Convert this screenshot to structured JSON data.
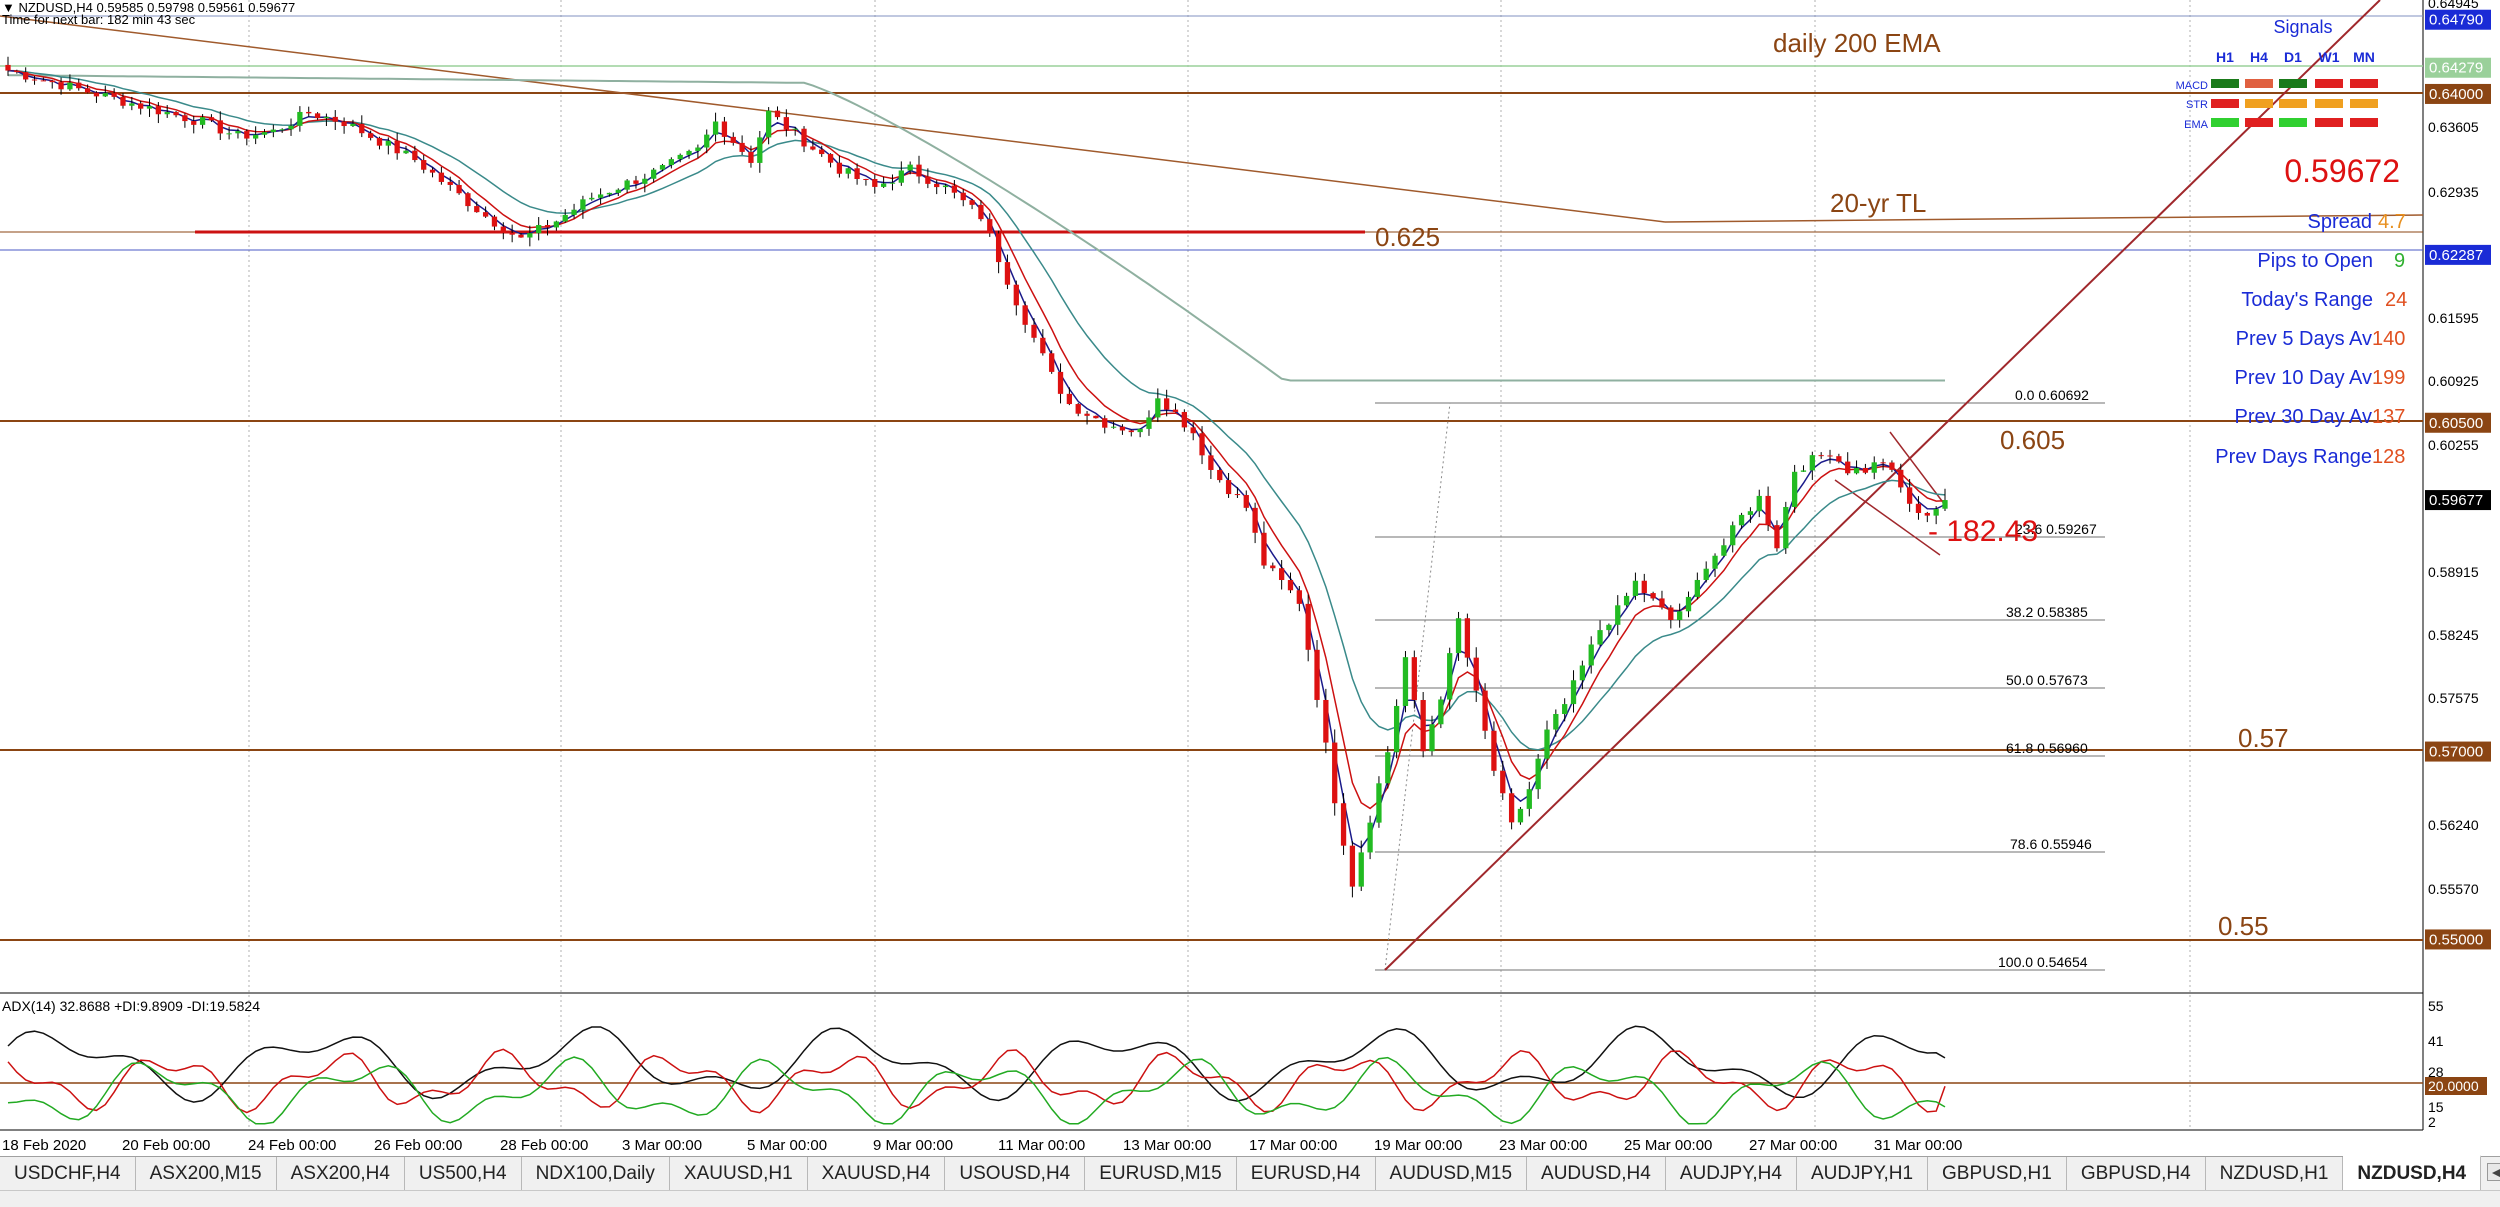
{
  "header": {
    "line1": "▼ NZDUSD,H4  0.59585 0.59798 0.59561 0.59677",
    "line2": "Time for next bar: 182 min 43 sec"
  },
  "annotations": {
    "daily_ema": "daily 200 EMA",
    "tl_20yr": "20-yr TL",
    "level_0625": "0.625",
    "level_0605": "0.605",
    "level_057": "0.57",
    "level_055": "0.55",
    "pips_label": "- 182.43"
  },
  "info_panel": {
    "signals_title": "Signals",
    "timeframes": [
      "H1",
      "H4",
      "D1",
      "W1",
      "MN"
    ],
    "rows": [
      {
        "name": "MACD",
        "colors": [
          "#1a7a1a",
          "#e06040",
          "#1a7a1a",
          "#e02020",
          "#e02020"
        ]
      },
      {
        "name": "STR",
        "colors": [
          "#e02020",
          "#f0a020",
          "#f0a020",
          "#f0a020",
          "#f0a020"
        ]
      },
      {
        "name": "EMA",
        "colors": [
          "#30d030",
          "#e02020",
          "#30d030",
          "#e02020",
          "#e02020"
        ]
      }
    ],
    "price": "0.59672",
    "spread_label": "Spread",
    "spread_value": "4.7",
    "pips_open_label": "Pips to Open",
    "pips_open_value": "9",
    "today_range_label": "Today's Range",
    "today_range_value": "24",
    "prev5_label": "Prev 5 Days Av",
    "prev5_value": "140",
    "prev10_label": "Prev 10 Day Av",
    "prev10_value": "199",
    "prev30_label": "Prev 30 Day Av",
    "prev30_value": "137",
    "prevdays_label": "Prev Days Range",
    "prevdays_value": "128"
  },
  "fib_levels": [
    {
      "pct": "0.0",
      "price": "0.60692"
    },
    {
      "pct": "23.6",
      "price": "0.59267"
    },
    {
      "pct": "38.2",
      "price": "0.58385"
    },
    {
      "pct": "50.0",
      "price": "0.57673"
    },
    {
      "pct": "61.8",
      "price": "0.56960"
    },
    {
      "pct": "78.6",
      "price": "0.55946"
    },
    {
      "pct": "100.0",
      "price": "0.54654"
    }
  ],
  "price_axis": {
    "ticks": [
      "0.64945",
      "0.63605",
      "0.62935",
      "0.61595",
      "0.60925",
      "0.60255",
      "0.58915",
      "0.58245",
      "0.57575",
      "0.56240",
      "0.55570"
    ],
    "boxes": [
      {
        "label": "0.64790",
        "color": "#1a2bd6"
      },
      {
        "label": "0.64279",
        "color": "#9ad09a"
      },
      {
        "label": "0.64000",
        "color": "#8b4513"
      },
      {
        "label": "0.62287",
        "color": "#1a2bd6"
      },
      {
        "label": "0.60500",
        "color": "#8b4513"
      },
      {
        "label": "0.59677",
        "color": "#000000"
      },
      {
        "label": "0.57000",
        "color": "#8b4513"
      },
      {
        "label": "0.55000",
        "color": "#8b4513"
      }
    ]
  },
  "adx": {
    "label": "ADX(14) 32.8688 +DI:9.8909 -DI:19.5824",
    "ticks": [
      "55",
      "41",
      "28",
      "15",
      "2"
    ],
    "level_box": "20.0000"
  },
  "time_axis": [
    "18 Feb 2020",
    "20 Feb 00:00",
    "24 Feb 00:00",
    "26 Feb 00:00",
    "28 Feb 00:00",
    "3 Mar 00:00",
    "5 Mar 00:00",
    "9 Mar 00:00",
    "11 Mar 00:00",
    "13 Mar 00:00",
    "17 Mar 00:00",
    "19 Mar 00:00",
    "23 Mar 00:00",
    "25 Mar 00:00",
    "27 Mar 00:00",
    "31 Mar 00:00"
  ],
  "tabs": [
    "USDCHF,H4",
    "ASX200,M15",
    "ASX200,H4",
    "US500,H4",
    "NDX100,Daily",
    "XAUUSD,H1",
    "XAUUSD,H4",
    "USOUSD,H4",
    "EURUSD,M15",
    "EURUSD,H4",
    "AUDUSD,M15",
    "AUDUSD,H4",
    "AUDJPY,H4",
    "AUDJPY,H1",
    "GBPUSD,H1",
    "GBPUSD,H4",
    "NZDUSD,H1",
    "NZDUSD,H4"
  ],
  "active_tab": "NZDUSD,H4",
  "colors": {
    "bull": "#22bb22",
    "bear": "#dd1111",
    "ema_fast": "#1a1a8a",
    "ema_slow": "#cc1111",
    "ema_teal": "#3a8a8a",
    "ema_200": "#8fb0a0",
    "level": "#8b4513",
    "trend": "#a05a2c"
  },
  "chart_data": {
    "type": "candlestick",
    "symbol": "NZDUSD",
    "timeframe": "H4",
    "ohlc_last": {
      "open": 0.59585,
      "high": 0.59798,
      "low": 0.59561,
      "close": 0.59677
    },
    "ylim": [
      0.5443,
      0.65
    ],
    "close_path": [
      [
        0,
        0.6425
      ],
      [
        6,
        0.641
      ],
      [
        12,
        0.6395
      ],
      [
        16,
        0.6385
      ],
      [
        22,
        0.637
      ],
      [
        26,
        0.6355
      ],
      [
        30,
        0.636
      ],
      [
        34,
        0.638
      ],
      [
        38,
        0.637
      ],
      [
        42,
        0.635
      ],
      [
        46,
        0.633
      ],
      [
        50,
        0.63
      ],
      [
        54,
        0.627
      ],
      [
        58,
        0.6245
      ],
      [
        62,
        0.6265
      ],
      [
        66,
        0.629
      ],
      [
        70,
        0.6305
      ],
      [
        74,
        0.632
      ],
      [
        78,
        0.634
      ],
      [
        80,
        0.637
      ],
      [
        84,
        0.633
      ],
      [
        86,
        0.638
      ],
      [
        90,
        0.635
      ],
      [
        94,
        0.632
      ],
      [
        98,
        0.63
      ],
      [
        102,
        0.632
      ],
      [
        106,
        0.63
      ],
      [
        110,
        0.627
      ],
      [
        114,
        0.618
      ],
      [
        118,
        0.61
      ],
      [
        120,
        0.607
      ],
      [
        124,
        0.605
      ],
      [
        128,
        0.604
      ],
      [
        130,
        0.608
      ],
      [
        134,
        0.604
      ],
      [
        136,
        0.6
      ],
      [
        140,
        0.596
      ],
      [
        142,
        0.59
      ],
      [
        146,
        0.586
      ],
      [
        148,
        0.576
      ],
      [
        150,
        0.565
      ],
      [
        152,
        0.556
      ],
      [
        154,
        0.563
      ],
      [
        156,
        0.57
      ],
      [
        158,
        0.58
      ],
      [
        160,
        0.57
      ],
      [
        162,
        0.576
      ],
      [
        164,
        0.584
      ],
      [
        166,
        0.576
      ],
      [
        168,
        0.568
      ],
      [
        170,
        0.562
      ],
      [
        172,
        0.566
      ],
      [
        174,
        0.572
      ],
      [
        176,
        0.575
      ],
      [
        178,
        0.579
      ],
      [
        180,
        0.583
      ],
      [
        182,
        0.585
      ],
      [
        184,
        0.588
      ],
      [
        186,
        0.586
      ],
      [
        188,
        0.584
      ],
      [
        190,
        0.586
      ],
      [
        192,
        0.59
      ],
      [
        194,
        0.592
      ],
      [
        196,
        0.595
      ],
      [
        198,
        0.597
      ],
      [
        200,
        0.592
      ],
      [
        202,
        0.6
      ],
      [
        204,
        0.601
      ],
      [
        206,
        0.602
      ],
      [
        208,
        0.6
      ],
      [
        210,
        0.6
      ],
      [
        212,
        0.601
      ],
      [
        214,
        0.598
      ],
      [
        216,
        0.595
      ],
      [
        218,
        0.596
      ],
      [
        219,
        0.5968
      ]
    ],
    "fib_retracement": {
      "high": 0.60692,
      "low": 0.54654,
      "levels": [
        0.0,
        23.6,
        38.2,
        50.0,
        61.8,
        78.6,
        100.0
      ]
    },
    "horizontal_levels": [
      0.6479,
      0.64,
      0.625,
      0.6229,
      0.605,
      0.57,
      0.55
    ],
    "adx": {
      "adx": 32.8688,
      "plus_di": 9.8909,
      "minus_di": 19.5824,
      "level": 20.0,
      "ylim": [
        0,
        60
      ]
    }
  }
}
